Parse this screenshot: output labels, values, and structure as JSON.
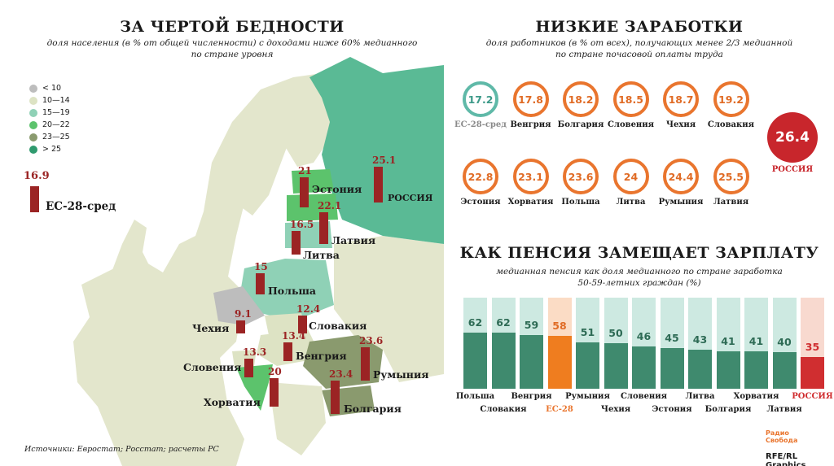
{
  "poverty": {
    "title": "ЗА ЧЕРТОЙ БЕДНОСТИ",
    "subtitle_line1": "доля населения (в % от общей численности)  с доходами ниже 60% медианного",
    "subtitle_line2": "по стране уровня",
    "legend": [
      {
        "label": "< 10",
        "color": "#bdbdbd"
      },
      {
        "label": "10—14",
        "color": "#dde3c4"
      },
      {
        "label": "15—19",
        "color": "#8fd1b6"
      },
      {
        "label": "20—22",
        "color": "#5cc36c"
      },
      {
        "label": "23—25",
        "color": "#8a9a6e"
      },
      {
        "label": "> 25",
        "color": "#2f9a6e"
      }
    ],
    "eu_value": "16.9",
    "eu_label": "ЕС-28-сред"
  },
  "low_wages": {
    "title": "НИЗКИЕ ЗАРАБОТКИ",
    "subtitle_line1": "доля работников (в % от всех), получающих менее 2/3 медианной",
    "subtitle_line2": "по стране почасовой оплаты труда",
    "russia_value": "26.4",
    "russia_label": "РОССИЯ"
  },
  "pension": {
    "title": "КАК ПЕНСИЯ ЗАМЕЩАЕТ ЗАРПЛАТУ",
    "subtitle_line1": "медианная пенсия как доля медианного по стране заработка",
    "subtitle_line2": "50-59-летних граждан (%)"
  },
  "footer": {
    "sources": "Источники: Евростат; Росстат; расчеты РС",
    "logo_text": "Радио Свобода",
    "credit": "RFE/RL Graphics"
  },
  "chart_data": [
    {
      "type": "bar",
      "title": "ЗА ЧЕРТОЙ БЕДНОСТИ",
      "categories": [
        "Эстония",
        "РОССИЯ",
        "Латвия",
        "Литва",
        "Польша",
        "Чехия",
        "Словакия",
        "Венгрия",
        "Словения",
        "Хорватия",
        "Румыния",
        "Болгария",
        "ЕС-28-сред"
      ],
      "values": [
        21,
        25.1,
        22.1,
        16.5,
        15,
        9.1,
        12.4,
        13.4,
        13.3,
        20,
        23.6,
        23.4,
        16.9
      ]
    },
    {
      "type": "bar",
      "title": "НИЗКИЕ ЗАРАБОТКИ",
      "categories": [
        "ЕС-28-сред",
        "Венгрия",
        "Болгария",
        "Словения",
        "Чехия",
        "Словакия",
        "Эстония",
        "Хорватия",
        "Польша",
        "Литва",
        "Румыния",
        "Латвия",
        "РОССИЯ"
      ],
      "values": [
        17.2,
        17.8,
        18.2,
        18.5,
        18.7,
        19.2,
        22.8,
        23.1,
        23.6,
        24,
        24.4,
        25.5,
        26.4
      ]
    },
    {
      "type": "bar",
      "title": "КАК ПЕНСИЯ ЗАМЕЩАЕТ ЗАРПЛАТУ",
      "categories": [
        "Польша",
        "Словакия",
        "Венгрия",
        "ЕС-28",
        "Румыния",
        "Чехия",
        "Словения",
        "Эстония",
        "Литва",
        "Болгария",
        "Хорватия",
        "Латвия",
        "РОССИЯ"
      ],
      "values": [
        62,
        62,
        59,
        58,
        51,
        50,
        46,
        45,
        43,
        41,
        41,
        40,
        35
      ],
      "ylim": [
        0,
        100
      ]
    }
  ]
}
